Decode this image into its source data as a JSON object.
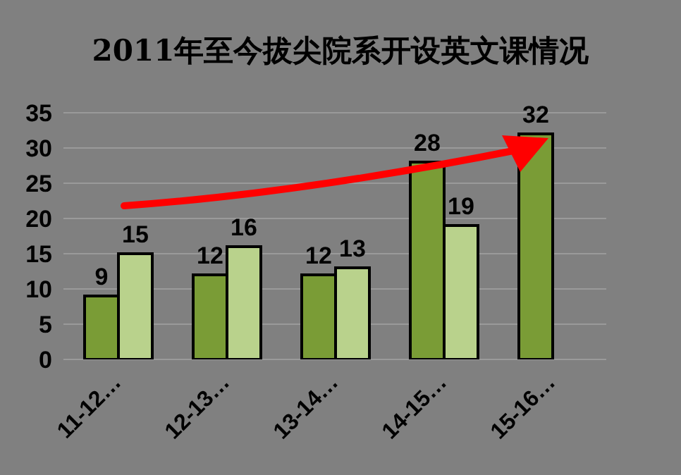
{
  "chart_data": {
    "type": "bar",
    "title": "2011年至今拔尖院系开设英文课情况",
    "categories": [
      "11-12…",
      "12-13…",
      "13-14…",
      "14-15…",
      "15-16…"
    ],
    "series": [
      {
        "color": "#7a9c36",
        "values": [
          9,
          12,
          12,
          28,
          32
        ]
      },
      {
        "color": "#b9d28c",
        "values": [
          15,
          16,
          13,
          19,
          null
        ]
      }
    ],
    "ylim": [
      0,
      35
    ],
    "yticks": [
      0,
      5,
      10,
      15,
      20,
      25,
      30,
      35
    ],
    "grid": "y",
    "data_labels": true,
    "legend": false
  }
}
